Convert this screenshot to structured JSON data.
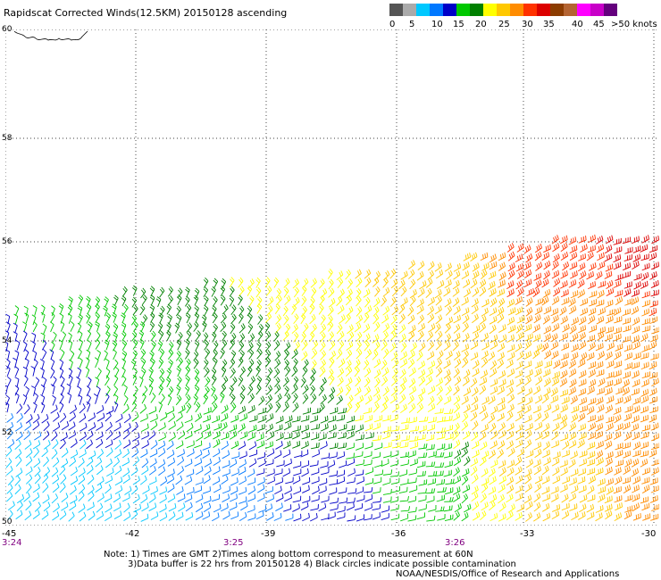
{
  "title": "Rapidscat Corrected Winds(12.5KM) 20150128 ascending",
  "scale": {
    "segments": [
      "#555555",
      "#aaaaaa",
      "#00c8ff",
      "#0078ff",
      "#0000c8",
      "#00c800",
      "#008000",
      "#ffff00",
      "#ffc800",
      "#ff8c00",
      "#ff3200",
      "#dc0000",
      "#8c3c00",
      "#b46432",
      "#ff00ff",
      "#c800c8",
      "#64007d"
    ],
    "labels": [
      "0",
      "5",
      "10",
      "15",
      "20",
      "25",
      "30",
      "35",
      "40",
      "45",
      ">50 knots"
    ]
  },
  "map": {
    "lat_labels": [
      "60",
      "58",
      "56",
      "54",
      "52",
      "50"
    ],
    "bottom_labels": [
      {
        "text": "-45",
        "color": "#000000"
      },
      {
        "text": "-42",
        "color": "#000000"
      },
      {
        "text": "-39",
        "color": "#000000"
      },
      {
        "text": "-36",
        "color": "#000000"
      },
      {
        "text": "-33",
        "color": "#000000"
      },
      {
        "text": "-30",
        "color": "#000000"
      }
    ],
    "time_labels": [
      "3:24",
      "3:25",
      "3:26"
    ],
    "time_color": "#800080"
  },
  "notes": {
    "line1": "Note: 1) Times are GMT 2)Times along bottom correspond to measurement at 60N",
    "line2": "3)Data buffer is 22 hrs from 20150128 4) Black circles indicate possible contamination",
    "credit": "NOAA/NESDIS/Office of Research and Applications"
  }
}
